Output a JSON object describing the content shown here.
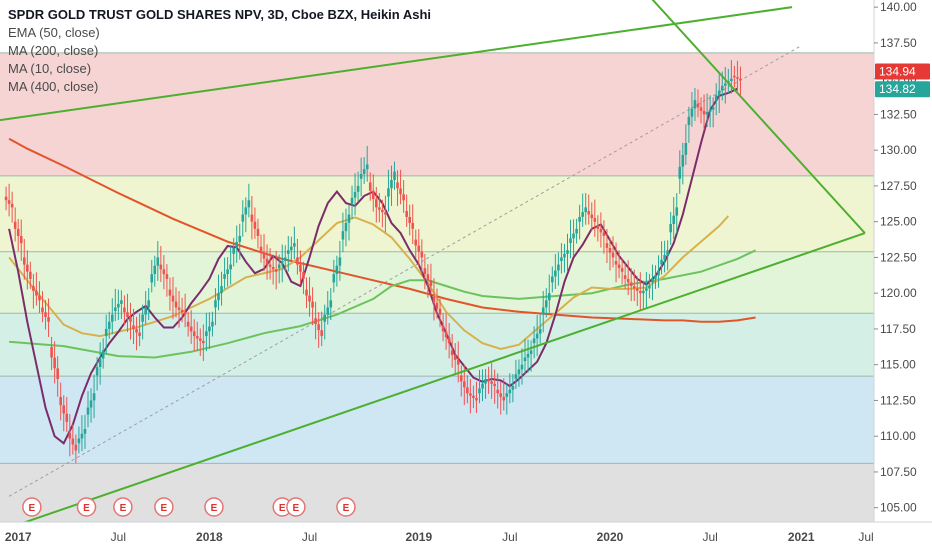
{
  "title": "SPDR GOLD TRUST GOLD SHARES NPV, 3D, Cboe BZX, Heikin Ashi",
  "indicators": [
    "EMA (50, close)",
    "MA (200, close)",
    "MA (10, close)",
    "MA (400, close)"
  ],
  "chart_data": {
    "type": "candlestick",
    "title": "SPDR GOLD TRUST GOLD SHARES NPV, 3D, Cboe BZX, Heikin Ashi",
    "y_ticks": [
      105,
      107.5,
      110,
      112.5,
      115,
      117.5,
      120,
      122.5,
      125,
      127.5,
      130,
      132.5,
      135,
      137.5,
      140
    ],
    "ylim": [
      104,
      140.5
    ],
    "x_ticks": [
      "2017",
      "Jul",
      "2018",
      "Jul",
      "2019",
      "Jul",
      "2020",
      "Jul",
      "2021",
      "Jul"
    ],
    "fib_levels": [
      108.1,
      114.2,
      118.6,
      122.9,
      128.2,
      136.8
    ],
    "fib_colors": [
      "#e0e0e0",
      "#cfe6f3",
      "#d4f0e6",
      "#e2f5d8",
      "#eef5d0",
      "#f6d4d4"
    ],
    "price_labels": [
      {
        "text": "134.94",
        "value": 134.94,
        "color": "#e53935"
      },
      {
        "text": "134.82",
        "value": 134.82,
        "color": "#26a69a"
      }
    ],
    "earnings_markers": [
      "E",
      "E",
      "E",
      "E",
      "E",
      "E",
      "E",
      "E"
    ],
    "series": [
      {
        "kind": "ma",
        "color": "#e2542a",
        "points": [
          [
            0,
            130.8
          ],
          [
            2,
            130.1
          ],
          [
            6,
            128.9
          ],
          [
            12,
            127.0
          ],
          [
            18,
            125.2
          ],
          [
            24,
            123.6
          ],
          [
            30,
            122.4
          ],
          [
            36,
            121.5
          ],
          [
            40,
            120.9
          ],
          [
            44,
            120.3
          ],
          [
            48,
            119.6
          ],
          [
            52,
            119.0
          ],
          [
            56,
            118.7
          ],
          [
            60,
            118.5
          ],
          [
            64,
            118.3
          ],
          [
            68,
            118.2
          ],
          [
            72,
            118.1
          ],
          [
            74,
            118.1
          ],
          [
            76,
            118.0
          ],
          [
            78,
            118.0
          ],
          [
            80,
            118.1
          ],
          [
            82,
            118.3
          ]
        ]
      },
      {
        "kind": "ma",
        "color": "#6cc35e",
        "points": [
          [
            0,
            116.6
          ],
          [
            6,
            116.3
          ],
          [
            12,
            115.6
          ],
          [
            16,
            115.5
          ],
          [
            20,
            115.9
          ],
          [
            24,
            116.5
          ],
          [
            28,
            117.2
          ],
          [
            32,
            117.7
          ],
          [
            36,
            118.5
          ],
          [
            40,
            119.6
          ],
          [
            42,
            120.5
          ],
          [
            44,
            120.9
          ],
          [
            46,
            120.9
          ],
          [
            48,
            120.5
          ],
          [
            50,
            120.1
          ],
          [
            52,
            119.8
          ],
          [
            56,
            119.6
          ],
          [
            60,
            119.8
          ],
          [
            64,
            120.0
          ],
          [
            68,
            120.6
          ],
          [
            72,
            121.0
          ],
          [
            76,
            121.5
          ],
          [
            80,
            122.4
          ],
          [
            82,
            123.0
          ]
        ]
      },
      {
        "kind": "ma",
        "color": "#d9b04e",
        "points": [
          [
            0,
            122.5
          ],
          [
            3,
            120.1
          ],
          [
            6,
            117.8
          ],
          [
            8,
            117.2
          ],
          [
            10,
            117.0
          ],
          [
            14,
            117.6
          ],
          [
            18,
            118.4
          ],
          [
            22,
            119.6
          ],
          [
            26,
            121.1
          ],
          [
            30,
            121.7
          ],
          [
            32,
            122.5
          ],
          [
            34,
            123.7
          ],
          [
            36,
            124.9
          ],
          [
            38,
            125.3
          ],
          [
            40,
            124.8
          ],
          [
            42,
            123.9
          ],
          [
            44,
            122.4
          ],
          [
            46,
            120.7
          ],
          [
            48,
            118.7
          ],
          [
            50,
            117.4
          ],
          [
            52,
            116.5
          ],
          [
            54,
            116.1
          ],
          [
            56,
            116.4
          ],
          [
            58,
            117.5
          ],
          [
            60,
            118.6
          ],
          [
            62,
            119.7
          ],
          [
            64,
            120.4
          ],
          [
            66,
            120.3
          ],
          [
            68,
            120.3
          ],
          [
            70,
            120.4
          ],
          [
            72,
            121.2
          ],
          [
            74,
            122.5
          ],
          [
            76,
            123.6
          ],
          [
            78,
            124.7
          ],
          [
            79,
            125.4
          ]
        ]
      },
      {
        "kind": "ma",
        "color": "#7b2c6b",
        "points": [
          [
            0,
            124.5
          ],
          [
            1,
            121.5
          ],
          [
            2,
            118.0
          ],
          [
            3,
            115.0
          ],
          [
            4,
            112.0
          ],
          [
            5,
            110.0
          ],
          [
            6,
            109.5
          ],
          [
            7,
            110.8
          ],
          [
            8,
            112.8
          ],
          [
            9,
            114.4
          ],
          [
            10,
            115.5
          ],
          [
            11,
            116.5
          ],
          [
            12,
            117.3
          ],
          [
            13,
            118.2
          ],
          [
            14,
            118.7
          ],
          [
            15,
            119.1
          ],
          [
            16,
            118.3
          ],
          [
            17,
            117.6
          ],
          [
            18,
            117.6
          ],
          [
            19,
            118.3
          ],
          [
            20,
            119.3
          ],
          [
            21,
            120.1
          ],
          [
            22,
            121.0
          ],
          [
            23,
            122.4
          ],
          [
            24,
            123.3
          ],
          [
            25,
            123.2
          ],
          [
            26,
            122.2
          ],
          [
            27,
            121.4
          ],
          [
            28,
            121.7
          ],
          [
            29,
            122.6
          ],
          [
            30,
            122.1
          ],
          [
            31,
            120.8
          ],
          [
            32,
            120.5
          ],
          [
            33,
            122.5
          ],
          [
            34,
            124.7
          ],
          [
            35,
            126.3
          ],
          [
            36,
            127.1
          ],
          [
            37,
            126.3
          ],
          [
            38,
            126.1
          ],
          [
            39,
            126.8
          ],
          [
            40,
            127.1
          ],
          [
            41,
            126.3
          ],
          [
            42,
            124.9
          ],
          [
            43,
            124.2
          ],
          [
            44,
            123.0
          ],
          [
            45,
            122.0
          ],
          [
            46,
            120.5
          ],
          [
            47,
            118.6
          ],
          [
            48,
            117.2
          ],
          [
            49,
            115.7
          ],
          [
            50,
            114.9
          ],
          [
            51,
            114.1
          ],
          [
            52,
            113.8
          ],
          [
            53,
            114.0
          ],
          [
            54,
            113.9
          ],
          [
            55,
            113.5
          ],
          [
            56,
            114.0
          ],
          [
            57,
            114.6
          ],
          [
            58,
            115.2
          ],
          [
            59,
            116.5
          ],
          [
            60,
            118.5
          ],
          [
            61,
            120.8
          ],
          [
            62,
            122.5
          ],
          [
            63,
            123.4
          ],
          [
            64,
            124.5
          ],
          [
            65,
            124.8
          ],
          [
            66,
            123.7
          ],
          [
            67,
            122.6
          ],
          [
            68,
            121.8
          ],
          [
            69,
            121.0
          ],
          [
            70,
            120.6
          ],
          [
            71,
            121.2
          ],
          [
            72,
            122.2
          ],
          [
            73,
            123.5
          ],
          [
            74,
            125.5
          ],
          [
            75,
            128.0
          ],
          [
            76,
            130.5
          ],
          [
            77,
            132.8
          ],
          [
            78,
            133.8
          ],
          [
            79,
            134.0
          ],
          [
            80,
            134.3
          ]
        ]
      },
      {
        "kind": "candles",
        "up": "#26a69a",
        "down": "#ef5350",
        "closes": [
          126.0,
          123.5,
          121.0,
          119.5,
          118.0,
          114.0,
          111.0,
          109.0,
          110.5,
          113.0,
          116.0,
          118.5,
          119.5,
          118.0,
          117.0,
          119.5,
          122.5,
          121.0,
          119.0,
          118.5,
          117.0,
          116.5,
          118.0,
          120.5,
          122.0,
          124.0,
          126.5,
          124.0,
          122.0,
          121.5,
          122.5,
          123.5,
          121.0,
          119.0,
          117.0,
          119.5,
          122.5,
          125.5,
          127.5,
          129.0,
          126.0,
          125.5,
          128.5,
          126.5,
          124.5,
          122.5,
          120.5,
          118.5,
          116.5,
          115.0,
          113.0,
          112.5,
          114.0,
          113.5,
          112.5,
          113.5,
          115.0,
          116.0,
          117.5,
          120.0,
          122.0,
          123.0,
          124.5,
          126.0,
          125.0,
          124.0,
          122.5,
          121.5,
          120.5,
          120.0,
          120.5,
          121.5,
          123.0,
          126.0,
          130.5,
          133.5,
          132.5,
          133.0,
          134.5,
          135.0,
          134.9
        ]
      }
    ],
    "trendlines": [
      {
        "x1": -1,
        "y1": 132.1,
        "x2": 86,
        "y2": 140.0,
        "color": "#4caf2e"
      },
      {
        "x1": 0,
        "y1": 103.6,
        "x2": 94,
        "y2": 124.2,
        "color": "#4caf2e"
      },
      {
        "x1": 70,
        "y1": 141.0,
        "x2": 94,
        "y2": 124.2,
        "color": "#4caf2e"
      },
      {
        "x1": 0,
        "y1": 105.8,
        "x2": 87,
        "y2": 137.3,
        "color": "#9e9e9e",
        "dashed": true
      }
    ],
    "candle_range": [
      0,
      80
    ],
    "x_range": [
      -1,
      95
    ]
  }
}
